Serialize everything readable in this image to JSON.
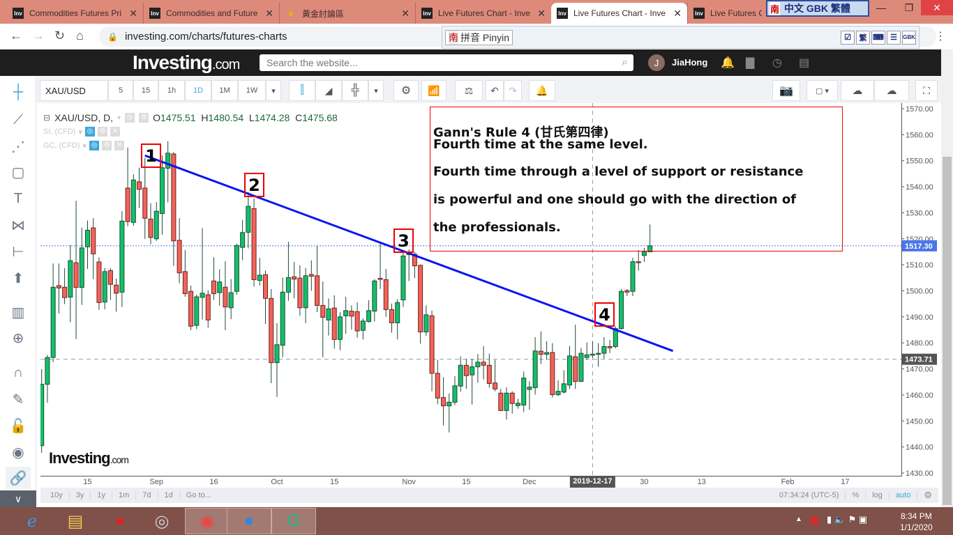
{
  "browser": {
    "tabs": [
      {
        "title": "Commodities Futures Pri",
        "icon": "investing-favicon"
      },
      {
        "title": "Commodities and Future",
        "icon": "investing-favicon"
      },
      {
        "title": "黃金討論區",
        "icon": "gem-favicon"
      },
      {
        "title": "Live Futures Chart - Inve",
        "icon": "investing-favicon"
      },
      {
        "title": "Live Futures Chart - Inve",
        "icon": "investing-favicon",
        "active": true
      },
      {
        "title": "Live Futures Ch",
        "icon": "investing-favicon"
      }
    ],
    "favicon_text": "Inv",
    "url": "investing.com/charts/futures-charts",
    "ime_bar": {
      "logo": "南",
      "label": "中文 GBK 繁體"
    },
    "ime_pinyin": {
      "logo": "南",
      "label": "拼音 Pinyin",
      "icons": [
        "☑",
        "繁",
        "⌨",
        "☰",
        "GBK"
      ]
    }
  },
  "site": {
    "logo": "Investing",
    "logo_suffix": ".com",
    "search_placeholder": "Search the website...",
    "user_initial": "J",
    "username": "JiaHong"
  },
  "toolbar": {
    "symbol": "XAU/USD",
    "intervals": [
      "5",
      "15",
      "1h",
      "1D",
      "1M",
      "1W"
    ],
    "active_interval": "1D"
  },
  "legend": {
    "title": "XAU/USD, D,",
    "open_label": "O",
    "open": "1475.51",
    "high_label": "H",
    "high": "1480.54",
    "low_label": "L",
    "low": "1474.28",
    "close_label": "C",
    "close": "1475.68",
    "studies": [
      "SI, (CFD)",
      "GC, (CFD)"
    ]
  },
  "annotation": {
    "title": "Gann's Rule 4 (甘氏第四律)",
    "line1": "Fourth time at the same level.",
    "line2": "Fourth time through a level of support or resistance",
    "line3": "is powerful and one should go with the direction of",
    "line4": "the professionals.",
    "markers": [
      "1",
      "2",
      "3",
      "4"
    ]
  },
  "watermark": {
    "text": "Investing",
    "suffix": ".com"
  },
  "colors": {
    "up": "#12c06a",
    "down": "#f2635a",
    "trendline": "#0a14f0",
    "price_tag": "#4a76e8",
    "crosshair_tag": "#555555",
    "annotation_border": "#e00000"
  },
  "chart_data": {
    "type": "candlestick",
    "candle_fields": [
      "date",
      "open",
      "high",
      "low",
      "close"
    ],
    "candles": [
      [
        "2019-08-05",
        1440.5,
        1469.9,
        1437.8,
        1464.1
      ],
      [
        "2019-08-06",
        1464.1,
        1475.4,
        1457.0,
        1474.4
      ],
      [
        "2019-08-07",
        1474.4,
        1510.5,
        1472.6,
        1501.4
      ],
      [
        "2019-08-08",
        1502.0,
        1510.5,
        1491.3,
        1501.1
      ],
      [
        "2019-08-09",
        1501.4,
        1508.7,
        1494.9,
        1497.4
      ],
      [
        "2019-08-12",
        1497.6,
        1517.6,
        1487.9,
        1511.6
      ],
      [
        "2019-08-13",
        1510.8,
        1534.6,
        1481.5,
        1501.3
      ],
      [
        "2019-08-14",
        1501.3,
        1524.3,
        1494.6,
        1516.5
      ],
      [
        "2019-08-15",
        1516.9,
        1527.0,
        1508.4,
        1523.3
      ],
      [
        "2019-08-16",
        1524.2,
        1527.9,
        1504.5,
        1514.2
      ],
      [
        "2019-08-19",
        1511.1,
        1512.9,
        1492.7,
        1495.5
      ],
      [
        "2019-08-20",
        1495.7,
        1508.7,
        1492.9,
        1507.4
      ],
      [
        "2019-08-21",
        1507.8,
        1508.7,
        1496.5,
        1502.5
      ],
      [
        "2019-08-22",
        1502.2,
        1504.7,
        1492.0,
        1499.1
      ],
      [
        "2019-08-23",
        1499.5,
        1530.6,
        1493.8,
        1526.8
      ],
      [
        "2019-08-26",
        1539.5,
        1555.1,
        1524.8,
        1526.6
      ],
      [
        "2019-08-27",
        1526.3,
        1544.8,
        1525.0,
        1542.6
      ],
      [
        "2019-08-28",
        1541.9,
        1547.3,
        1531.8,
        1539.0
      ],
      [
        "2019-08-29",
        1539.5,
        1551.1,
        1519.9,
        1527.9
      ],
      [
        "2019-08-30",
        1527.6,
        1533.7,
        1517.9,
        1520.5
      ],
      [
        "2019-09-02",
        1520.0,
        1534.1,
        1519.2,
        1530.6
      ],
      [
        "2019-09-03",
        1529.7,
        1552.0,
        1521.6,
        1547.3
      ],
      [
        "2019-09-04",
        1547.1,
        1557.5,
        1534.0,
        1552.9
      ],
      [
        "2019-09-05",
        1552.6,
        1553.3,
        1509.6,
        1519.2
      ],
      [
        "2019-09-06",
        1519.4,
        1527.9,
        1502.9,
        1506.9
      ],
      [
        "2019-09-09",
        1507.4,
        1515.7,
        1497.7,
        1498.9
      ],
      [
        "2019-09-10",
        1499.8,
        1502.0,
        1484.9,
        1486.4
      ],
      [
        "2019-09-11",
        1486.7,
        1498.6,
        1485.3,
        1497.7
      ],
      [
        "2019-09-12",
        1497.5,
        1524.1,
        1489.0,
        1499.1
      ],
      [
        "2019-09-13",
        1498.5,
        1500.2,
        1485.8,
        1488.8
      ],
      [
        "2019-09-16",
        1503.8,
        1512.9,
        1496.5,
        1498.9
      ],
      [
        "2019-09-17",
        1499.3,
        1508.3,
        1494.2,
        1503.4
      ],
      [
        "2019-09-18",
        1501.4,
        1511.4,
        1484.9,
        1493.8
      ],
      [
        "2019-09-19",
        1493.5,
        1504.5,
        1489.1,
        1499.3
      ],
      [
        "2019-09-20",
        1499.8,
        1518.1,
        1498.5,
        1517.4
      ],
      [
        "2019-09-23",
        1516.7,
        1527.2,
        1511.8,
        1522.4
      ],
      [
        "2019-09-24",
        1522.5,
        1538.0,
        1516.3,
        1532.5
      ],
      [
        "2019-09-25",
        1531.6,
        1535.5,
        1501.6,
        1504.3
      ],
      [
        "2019-09-26",
        1504.0,
        1512.7,
        1502.0,
        1506.0
      ],
      [
        "2019-09-27",
        1506.2,
        1507.8,
        1487.3,
        1497.1
      ],
      [
        "2019-09-30",
        1497.1,
        1500.7,
        1464.5,
        1472.4
      ],
      [
        "2019-10-01",
        1472.4,
        1487.6,
        1459.2,
        1479.3
      ],
      [
        "2019-10-02",
        1479.1,
        1505.1,
        1474.5,
        1499.5
      ],
      [
        "2019-10-03",
        1499.5,
        1518.8,
        1496.2,
        1505.1
      ],
      [
        "2019-10-04",
        1505.4,
        1511.1,
        1497.1,
        1504.5
      ],
      [
        "2019-10-07",
        1504.9,
        1509.8,
        1490.4,
        1493.5
      ],
      [
        "2019-10-08",
        1493.5,
        1508.7,
        1487.6,
        1505.8
      ],
      [
        "2019-10-09",
        1506.3,
        1511.7,
        1500.0,
        1505.6
      ],
      [
        "2019-10-10",
        1505.8,
        1517.4,
        1491.8,
        1494.4
      ],
      [
        "2019-10-11",
        1494.4,
        1503.6,
        1474.5,
        1489.8
      ],
      [
        "2019-10-14",
        1488.8,
        1497.1,
        1482.8,
        1493.1
      ],
      [
        "2019-10-15",
        1493.4,
        1498.3,
        1477.8,
        1481.3
      ],
      [
        "2019-10-16",
        1481.3,
        1491.8,
        1477.2,
        1490.0
      ],
      [
        "2019-10-17",
        1490.4,
        1497.7,
        1483.5,
        1492.4
      ],
      [
        "2019-10-18",
        1492.2,
        1494.4,
        1485.1,
        1490.3
      ],
      [
        "2019-10-21",
        1492.0,
        1495.6,
        1482.0,
        1484.6
      ],
      [
        "2019-10-22",
        1484.8,
        1489.4,
        1481.3,
        1488.4
      ],
      [
        "2019-10-23",
        1488.2,
        1496.4,
        1487.8,
        1492.4
      ],
      [
        "2019-10-24",
        1492.2,
        1504.5,
        1488.2,
        1503.8
      ],
      [
        "2019-10-25",
        1504.8,
        1518.5,
        1500.7,
        1504.7
      ],
      [
        "2019-10-28",
        1504.3,
        1508.4,
        1490.0,
        1492.8
      ],
      [
        "2019-10-29",
        1492.8,
        1495.1,
        1483.9,
        1487.7
      ],
      [
        "2019-10-30",
        1487.7,
        1496.8,
        1481.3,
        1495.5
      ],
      [
        "2019-10-31",
        1496.5,
        1515.0,
        1493.8,
        1513.4
      ],
      [
        "2019-11-01",
        1514.0,
        1515.9,
        1503.8,
        1514.3
      ],
      [
        "2019-11-04",
        1514.1,
        1515.0,
        1504.9,
        1509.6
      ],
      [
        "2019-11-05",
        1509.8,
        1510.2,
        1479.7,
        1484.2
      ],
      [
        "2019-11-06",
        1484.2,
        1494.4,
        1482.6,
        1490.8
      ],
      [
        "2019-11-07",
        1490.4,
        1492.4,
        1461.4,
        1468.3
      ],
      [
        "2019-11-08",
        1468.3,
        1473.5,
        1456.4,
        1458.8
      ],
      [
        "2019-11-11",
        1459.0,
        1466.8,
        1448.3,
        1455.8
      ],
      [
        "2019-11-12",
        1455.8,
        1460.5,
        1445.6,
        1457.2
      ],
      [
        "2019-11-13",
        1457.2,
        1467.2,
        1456.1,
        1463.5
      ],
      [
        "2019-11-14",
        1463.4,
        1474.8,
        1461.2,
        1471.4
      ],
      [
        "2019-11-15",
        1471.4,
        1473.9,
        1462.3,
        1467.4
      ],
      [
        "2019-11-18",
        1467.7,
        1473.9,
        1456.3,
        1470.8
      ],
      [
        "2019-11-19",
        1470.8,
        1475.7,
        1464.7,
        1472.6
      ],
      [
        "2019-11-20",
        1472.6,
        1478.8,
        1465.9,
        1471.4
      ],
      [
        "2019-11-21",
        1471.4,
        1475.9,
        1462.8,
        1464.4
      ],
      [
        "2019-11-22",
        1464.6,
        1473.5,
        1461.4,
        1462.3
      ],
      [
        "2019-11-25",
        1460.7,
        1462.3,
        1453.8,
        1454.0
      ],
      [
        "2019-11-26",
        1454.0,
        1462.9,
        1450.5,
        1460.7
      ],
      [
        "2019-11-27",
        1460.7,
        1461.4,
        1452.8,
        1456.7
      ],
      [
        "2019-11-28",
        1455.9,
        1458.5,
        1454.7,
        1456.8
      ],
      [
        "2019-11-29",
        1456.1,
        1469.0,
        1453.4,
        1466.5
      ],
      [
        "2019-12-02",
        1462.1,
        1465.3,
        1454.3,
        1463.0
      ],
      [
        "2019-12-03",
        1462.8,
        1482.2,
        1460.1,
        1476.9
      ],
      [
        "2019-12-04",
        1476.8,
        1484.4,
        1471.9,
        1475.6
      ],
      [
        "2019-12-05",
        1475.6,
        1480.6,
        1473.5,
        1476.3
      ],
      [
        "2019-12-06",
        1476.3,
        1479.9,
        1459.0,
        1460.1
      ],
      [
        "2019-12-09",
        1460.1,
        1465.6,
        1459.6,
        1461.4
      ],
      [
        "2019-12-10",
        1461.1,
        1469.5,
        1460.5,
        1464.3
      ],
      [
        "2019-12-11",
        1463.8,
        1478.8,
        1462.3,
        1475.0
      ],
      [
        "2019-12-12",
        1474.7,
        1487.0,
        1462.3,
        1465.2
      ],
      [
        "2019-12-13",
        1465.2,
        1478.1,
        1465.0,
        1476.0
      ],
      [
        "2019-12-16",
        1474.4,
        1480.2,
        1473.5,
        1475.4
      ],
      [
        "2019-12-17",
        1475.51,
        1480.54,
        1474.28,
        1475.68
      ],
      [
        "2019-12-18",
        1475.7,
        1479.9,
        1470.8,
        1476.0
      ],
      [
        "2019-12-19",
        1476.0,
        1482.2,
        1473.9,
        1478.6
      ],
      [
        "2019-12-20",
        1478.6,
        1481.1,
        1476.1,
        1478.1
      ],
      [
        "2019-12-23",
        1478.6,
        1486.4,
        1477.9,
        1485.5
      ],
      [
        "2019-12-24",
        1485.5,
        1500.7,
        1485.1,
        1499.8
      ],
      [
        "2019-12-25",
        1500.1,
        1500.7,
        1498.0,
        1499.5
      ],
      [
        "2019-12-26",
        1499.8,
        1512.7,
        1498.0,
        1511.2
      ],
      [
        "2019-12-27",
        1511.2,
        1515.6,
        1507.8,
        1510.9
      ],
      [
        "2019-12-30",
        1513.6,
        1516.5,
        1511.1,
        1515.1
      ],
      [
        "2019-12-31",
        1515.0,
        1525.5,
        1515.0,
        1517.3
      ]
    ],
    "ylim": [
      1430,
      1570
    ],
    "y_ticks": [
      "1570.00",
      "1560.00",
      "1550.00",
      "1540.00",
      "1530.00",
      "1520.00",
      "1510.00",
      "1500.00",
      "1490.00",
      "1480.00",
      "1470.00",
      "1460.00",
      "1450.00",
      "1440.00",
      "1430.00"
    ],
    "x_ticks": [
      {
        "label": "15",
        "date": "2019-08-15"
      },
      {
        "label": "Sep",
        "date": "2019-09-02"
      },
      {
        "label": "16",
        "date": "2019-09-16"
      },
      {
        "label": "Oct",
        "date": "2019-10-01"
      },
      {
        "label": "15",
        "date": "2019-10-15"
      },
      {
        "label": "Nov",
        "date": "2019-11-01"
      },
      {
        "label": "15",
        "date": "2019-11-15"
      },
      {
        "label": "Dec",
        "date": "2019-12-02"
      },
      {
        "label": "30",
        "date": "2019-12-30"
      },
      {
        "label": "13",
        "date": "2020-01-13"
      },
      {
        "label": "Feb",
        "date": "2020-02-03"
      },
      {
        "label": "17",
        "date": "2020-02-17"
      }
    ],
    "crosshair": {
      "date": "2019-12-17",
      "date_label": "2019-12-17",
      "price": 1473.71,
      "price_label": "1473.71"
    },
    "last_price": {
      "price": 1517.3,
      "label": "1517.30"
    },
    "trendline": {
      "start": {
        "date": "2019-08-29",
        "price": 1552.0
      },
      "end": {
        "date": "2020-01-06",
        "price": 1476.9
      }
    },
    "grid": false,
    "scale": "linear"
  },
  "bottom_bar": {
    "ranges": [
      "10y",
      "3y",
      "1y",
      "1m",
      "7d",
      "1d",
      "Go to..."
    ],
    "time": "07:34:24 (UTC-5)",
    "percent": "%",
    "log": "log",
    "auto": "auto"
  },
  "taskbar": {
    "apps": [
      "internet-explorer",
      "file-explorer",
      "nan-ime",
      "chromium",
      "chrome",
      "blue-app",
      "grammarly"
    ],
    "time": "8:34 PM",
    "date": "1/1/2020",
    "tray_ime": "南"
  }
}
